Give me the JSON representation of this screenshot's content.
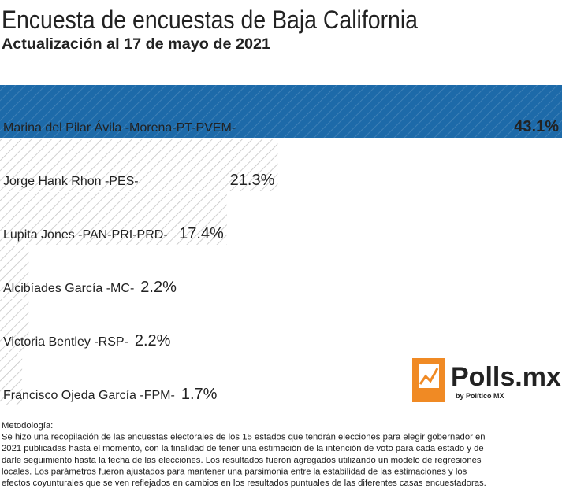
{
  "chart_data": {
    "type": "hbar",
    "title": "Encuesta de encuestas de Baja California",
    "subtitle": "Actualización al 17 de mayo de 2021",
    "categories": [
      "Marina del Pilar Ávila -Morena-PT-PVEM-",
      "Jorge Hank Rhon -PES-",
      "Lupita Jones -PAN-PRI-PRD-",
      "Alcibíades García -MC-",
      "Victoria Bentley -RSP-",
      "Francisco Ojeda García -FPM-"
    ],
    "values": [
      43.1,
      21.3,
      17.4,
      2.2,
      2.2,
      1.7
    ],
    "value_labels": [
      "43.1%",
      "21.3%",
      "17.4%",
      "2.2%",
      "2.2%",
      "1.7%"
    ],
    "colors": [
      "#1d6aa9",
      "#ffffff",
      "#ffffff",
      "#ffffff",
      "#ffffff",
      "#ffffff"
    ],
    "hatch_color": "#c4c4c4",
    "logo": {
      "name": "Polls.mx",
      "byline": "by Político MX"
    },
    "footnote": [
      "Metodología:",
      "Se hizo una recopilación de las encuestas electorales de los 15 estados que tendrán elecciones para elegir gobernador en",
      "2021 publicadas hasta el momento, con la finalidad de tener una estimación de la intención de voto para cada estado y de",
      "darle seguimiento hasta la fecha de las elecciones. Los resultados fueron agregados utilizando un modelo de regresiones",
      "locales. Los parámetros fueron ajustados para mantener una parsimonia entre la estabilidad de las estimaciones y los",
      "efectos coyunturales que se ven reflejados en cambios en los resultados puntuales de las diferentes casas encuestadoras."
    ]
  }
}
